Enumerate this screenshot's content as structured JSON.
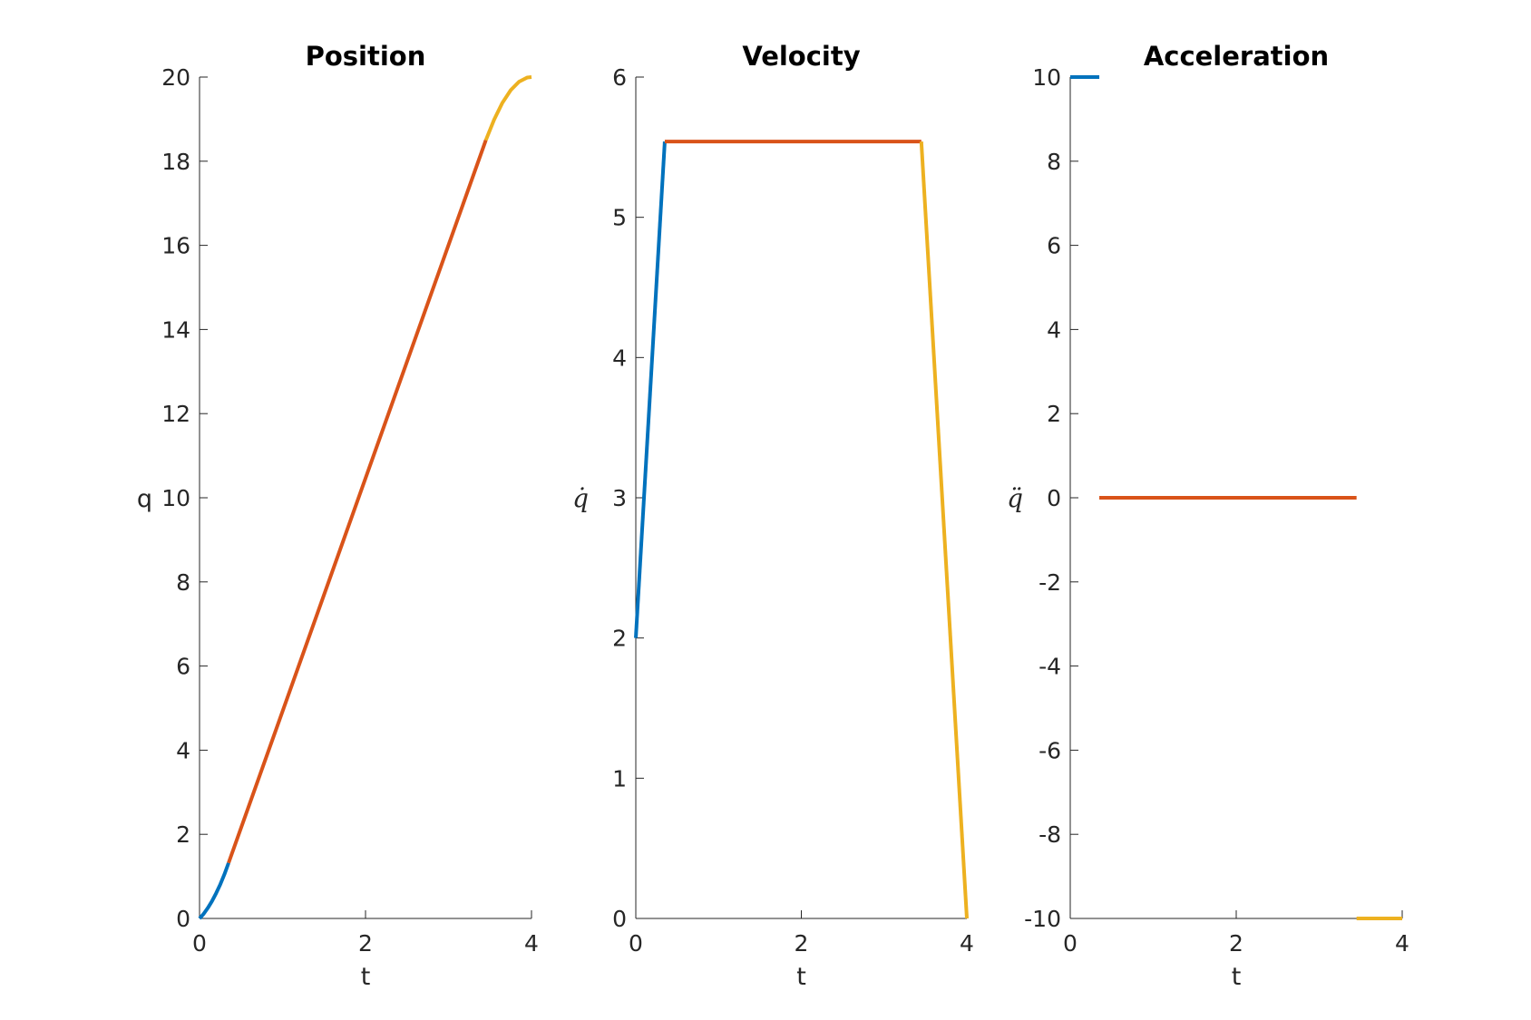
{
  "colors": {
    "seg1": "#0072BD",
    "seg2": "#D95319",
    "seg3": "#EDB120"
  },
  "chart_data": [
    {
      "type": "line",
      "title": "Position",
      "xlabel": "t",
      "ylabel": "q",
      "xlim": [
        0,
        4
      ],
      "ylim": [
        0,
        20
      ],
      "xticks": [
        0,
        2,
        4
      ],
      "yticks": [
        0,
        2,
        4,
        6,
        8,
        10,
        12,
        14,
        16,
        18,
        20
      ],
      "xtick_labels": [
        "0",
        "2",
        "4"
      ],
      "ytick_labels": [
        "0",
        "2",
        "4",
        "6",
        "8",
        "10",
        "12",
        "14",
        "16",
        "18",
        "20"
      ],
      "grid": false,
      "series": [
        {
          "color": "#0072BD",
          "x": [
            0,
            0.05,
            0.1,
            0.15,
            0.2,
            0.25,
            0.3,
            0.35
          ],
          "y": [
            0,
            0.11,
            0.25,
            0.41,
            0.6,
            0.81,
            1.05,
            1.32
          ]
        },
        {
          "color": "#D95319",
          "x": [
            0.35,
            3.45
          ],
          "y": [
            1.32,
            18.5
          ]
        },
        {
          "color": "#EDB120",
          "x": [
            3.45,
            3.55,
            3.65,
            3.75,
            3.85,
            3.95,
            4.0
          ],
          "y": [
            18.5,
            18.99,
            19.39,
            19.69,
            19.89,
            19.99,
            20.0
          ]
        }
      ]
    },
    {
      "type": "line",
      "title": "Velocity",
      "xlabel": "t",
      "ylabel": "q̇",
      "xlim": [
        0,
        4
      ],
      "ylim": [
        0,
        6
      ],
      "xticks": [
        0,
        2,
        4
      ],
      "yticks": [
        0,
        1,
        2,
        3,
        4,
        5,
        6
      ],
      "xtick_labels": [
        "0",
        "2",
        "4"
      ],
      "ytick_labels": [
        "0",
        "1",
        "2",
        "3",
        "4",
        "5",
        "6"
      ],
      "grid": false,
      "series": [
        {
          "color": "#0072BD",
          "x": [
            0,
            0.35
          ],
          "y": [
            2,
            5.54
          ]
        },
        {
          "color": "#D95319",
          "x": [
            0.35,
            3.45
          ],
          "y": [
            5.54,
            5.54
          ]
        },
        {
          "color": "#EDB120",
          "x": [
            3.45,
            4.0
          ],
          "y": [
            5.54,
            0
          ]
        }
      ]
    },
    {
      "type": "line",
      "title": "Acceleration",
      "xlabel": "t",
      "ylabel": "q̈",
      "xlim": [
        0,
        4
      ],
      "ylim": [
        -10,
        10
      ],
      "xticks": [
        0,
        2,
        4
      ],
      "yticks": [
        -10,
        -8,
        -6,
        -4,
        -2,
        0,
        2,
        4,
        6,
        8,
        10
      ],
      "xtick_labels": [
        "0",
        "2",
        "4"
      ],
      "ytick_labels": [
        "-10",
        "-8",
        "-6",
        "-4",
        "-2",
        "0",
        "2",
        "4",
        "6",
        "8",
        "10"
      ],
      "grid": false,
      "series": [
        {
          "color": "#0072BD",
          "x": [
            0,
            0.35
          ],
          "y": [
            10,
            10
          ]
        },
        {
          "color": "#D95319",
          "x": [
            0.35,
            3.45
          ],
          "y": [
            0,
            0
          ]
        },
        {
          "color": "#EDB120",
          "x": [
            3.45,
            4.0
          ],
          "y": [
            -10,
            -10
          ]
        }
      ]
    }
  ]
}
